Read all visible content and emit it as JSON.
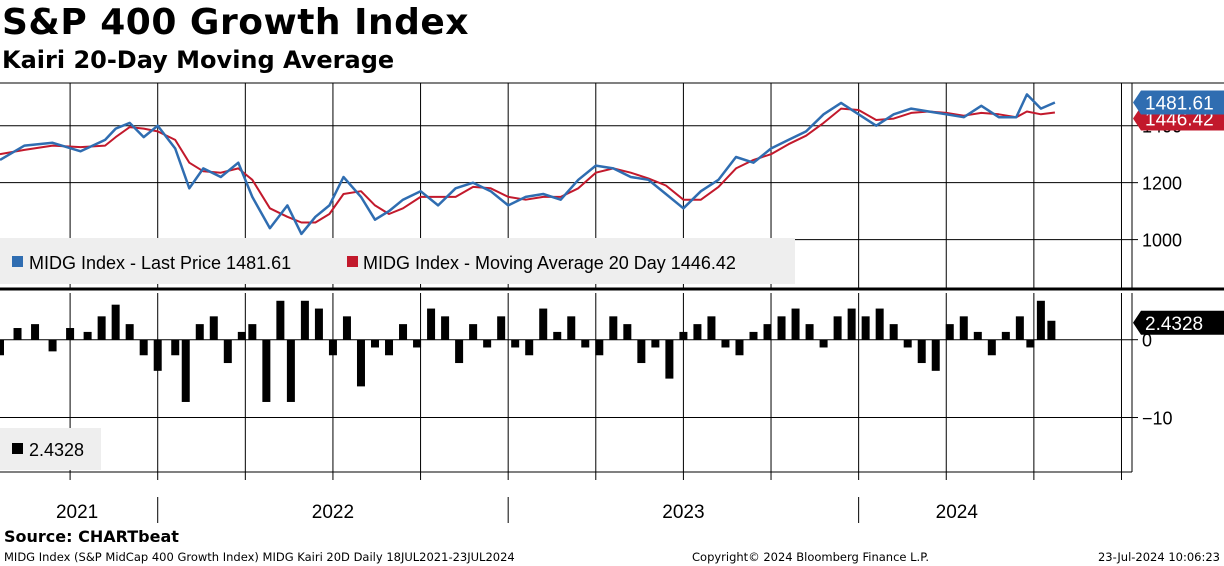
{
  "header": {
    "title": "S&P 400 Growth Index",
    "subtitle": "Kairi 20-Day Moving Average"
  },
  "footer": {
    "source": "Source: CHARTbeat",
    "description": "MIDG Index (S&P MidCap 400 Growth Index) MIDG Kairi 20D  Daily 18JUL2021-23JUL2024",
    "copyright": "Copyright© 2024 Bloomberg Finance L.P.",
    "timestamp": "23-Jul-2024 10:06:23"
  },
  "colors": {
    "price": "#2f6db1",
    "moving_average": "#c2192c",
    "kairi": "#000000",
    "grid": "#000000",
    "legend_bg": "#eeeeee"
  },
  "chart_data": [
    {
      "type": "line",
      "panel": "price",
      "ylim": [
        830,
        1550
      ],
      "yticks": [
        "1000",
        "1200",
        "1400"
      ],
      "series": [
        {
          "name": "MIDG Index - Last Price 1481.61",
          "x": [
            2021.55,
            2021.62,
            2021.7,
            2021.78,
            2021.85,
            2021.88,
            2021.92,
            2021.96,
            2022.0,
            2022.05,
            2022.09,
            2022.13,
            2022.18,
            2022.23,
            2022.27,
            2022.32,
            2022.37,
            2022.41,
            2022.45,
            2022.49,
            2022.53,
            2022.58,
            2022.62,
            2022.66,
            2022.7,
            2022.75,
            2022.8,
            2022.85,
            2022.9,
            2022.95,
            2023.0,
            2023.05,
            2023.1,
            2023.15,
            2023.2,
            2023.25,
            2023.3,
            2023.35,
            2023.4,
            2023.45,
            2023.5,
            2023.55,
            2023.6,
            2023.65,
            2023.7,
            2023.75,
            2023.8,
            2023.85,
            2023.9,
            2023.95,
            2024.0,
            2024.05,
            2024.1,
            2024.15,
            2024.2,
            2024.25,
            2024.3,
            2024.35,
            2024.4,
            2024.45,
            2024.48,
            2024.52,
            2024.56
          ],
          "values": [
            1280,
            1330,
            1340,
            1310,
            1350,
            1390,
            1410,
            1360,
            1400,
            1320,
            1180,
            1250,
            1220,
            1270,
            1150,
            1040,
            1120,
            1020,
            1080,
            1120,
            1220,
            1150,
            1070,
            1100,
            1140,
            1170,
            1120,
            1180,
            1200,
            1170,
            1120,
            1150,
            1160,
            1140,
            1210,
            1260,
            1250,
            1220,
            1210,
            1160,
            1110,
            1170,
            1210,
            1290,
            1270,
            1320,
            1350,
            1380,
            1440,
            1480,
            1440,
            1400,
            1440,
            1460,
            1450,
            1440,
            1430,
            1470,
            1430,
            1430,
            1510,
            1460,
            1481.61
          ]
        },
        {
          "name": "MIDG Index - Moving Average 20 Day 1446.42",
          "x": [
            2021.55,
            2021.62,
            2021.7,
            2021.78,
            2021.85,
            2021.88,
            2021.92,
            2021.96,
            2022.0,
            2022.05,
            2022.09,
            2022.13,
            2022.18,
            2022.23,
            2022.27,
            2022.32,
            2022.37,
            2022.41,
            2022.45,
            2022.49,
            2022.53,
            2022.58,
            2022.62,
            2022.66,
            2022.7,
            2022.75,
            2022.8,
            2022.85,
            2022.9,
            2022.95,
            2023.0,
            2023.05,
            2023.1,
            2023.15,
            2023.2,
            2023.25,
            2023.3,
            2023.35,
            2023.4,
            2023.45,
            2023.5,
            2023.55,
            2023.6,
            2023.65,
            2023.7,
            2023.75,
            2023.8,
            2023.85,
            2023.9,
            2023.95,
            2024.0,
            2024.05,
            2024.1,
            2024.15,
            2024.2,
            2024.25,
            2024.3,
            2024.35,
            2024.4,
            2024.45,
            2024.48,
            2024.52,
            2024.56
          ],
          "values": [
            1300,
            1315,
            1330,
            1325,
            1330,
            1360,
            1395,
            1390,
            1380,
            1350,
            1270,
            1240,
            1235,
            1250,
            1210,
            1110,
            1080,
            1060,
            1060,
            1090,
            1160,
            1170,
            1120,
            1090,
            1110,
            1150,
            1150,
            1150,
            1185,
            1180,
            1150,
            1140,
            1150,
            1150,
            1180,
            1235,
            1250,
            1235,
            1215,
            1190,
            1140,
            1140,
            1185,
            1250,
            1280,
            1300,
            1335,
            1365,
            1410,
            1460,
            1455,
            1420,
            1425,
            1445,
            1450,
            1445,
            1435,
            1445,
            1440,
            1430,
            1450,
            1440,
            1446.42
          ]
        }
      ],
      "last_labels": [
        "1481.61",
        "1446.42"
      ]
    },
    {
      "type": "bar",
      "panel": "kairi",
      "ylim": [
        -17,
        6
      ],
      "yticks": [
        "0",
        "-10"
      ],
      "series": [
        {
          "name": "2.4328",
          "x": [
            2021.55,
            2021.6,
            2021.65,
            2021.7,
            2021.75,
            2021.8,
            2021.84,
            2021.88,
            2021.92,
            2021.96,
            2022.0,
            2022.05,
            2022.08,
            2022.12,
            2022.16,
            2022.2,
            2022.24,
            2022.27,
            2022.31,
            2022.35,
            2022.38,
            2022.42,
            2022.46,
            2022.5,
            2022.54,
            2022.58,
            2022.62,
            2022.66,
            2022.7,
            2022.74,
            2022.78,
            2022.82,
            2022.86,
            2022.9,
            2022.94,
            2022.98,
            2023.02,
            2023.06,
            2023.1,
            2023.14,
            2023.18,
            2023.22,
            2023.26,
            2023.3,
            2023.34,
            2023.38,
            2023.42,
            2023.46,
            2023.5,
            2023.54,
            2023.58,
            2023.62,
            2023.66,
            2023.7,
            2023.74,
            2023.78,
            2023.82,
            2023.86,
            2023.9,
            2023.94,
            2023.98,
            2024.02,
            2024.06,
            2024.1,
            2024.14,
            2024.18,
            2024.22,
            2024.26,
            2024.3,
            2024.34,
            2024.38,
            2024.42,
            2024.46,
            2024.49,
            2024.52,
            2024.55
          ],
          "values": [
            -2,
            1.5,
            2,
            -1.5,
            1.5,
            1,
            3,
            4.5,
            2,
            -2,
            -4,
            -2,
            -8,
            2,
            3,
            -3,
            1,
            2,
            -8,
            5,
            -8,
            5,
            4,
            -2,
            3,
            -6,
            -1,
            -2,
            2,
            -1,
            4,
            3,
            -3,
            2,
            -1,
            3,
            -1,
            -2,
            4,
            1,
            3,
            -1,
            -2,
            3,
            2,
            -3,
            -1,
            -5,
            1,
            2,
            3,
            -1,
            -2,
            1,
            2,
            3,
            4,
            2,
            -1,
            3,
            4,
            3,
            4,
            2,
            -1,
            -3,
            -4,
            2,
            3,
            1,
            -2,
            1,
            3,
            -1,
            5,
            2.4328
          ]
        }
      ],
      "last_labels": [
        "2.4328"
      ]
    }
  ],
  "x_axis": {
    "labels": [
      "2021",
      "2022",
      "2023",
      "2024"
    ]
  }
}
